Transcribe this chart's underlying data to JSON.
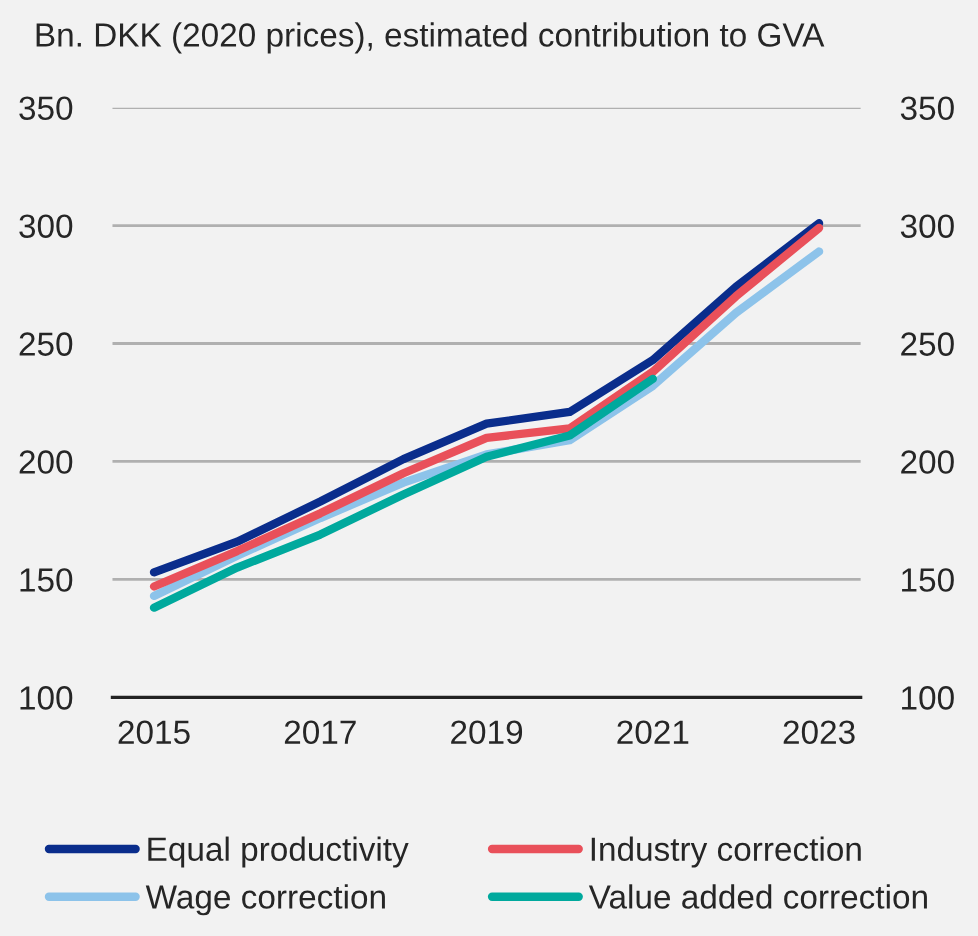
{
  "chart_data": {
    "type": "line",
    "title": "Bn. DKK (2020 prices), estimated contribution to GVA",
    "categories": [
      "2015",
      null,
      "2017",
      null,
      "2019",
      null,
      "2021",
      null,
      "2023"
    ],
    "series": [
      {
        "name": "Equal productivity",
        "color": "#0a2d8c",
        "values": [
          153,
          166,
          183,
          201,
          216,
          221,
          243,
          274,
          301
        ]
      },
      {
        "name": "Wage correction",
        "color": "#8dc3ea",
        "values": [
          143,
          160,
          176,
          191,
          203,
          209,
          232,
          263,
          289
        ]
      },
      {
        "name": "Industry correction",
        "color": "#e9505a",
        "values": [
          147,
          162,
          178,
          195,
          210,
          214,
          238,
          270,
          299
        ]
      },
      {
        "name": "Value added correction",
        "color": "#00a99d",
        "values": [
          138,
          155,
          169,
          186,
          202,
          211,
          235,
          null,
          null
        ]
      }
    ],
    "ylim": [
      100,
      350
    ],
    "yticks": [
      100,
      150,
      200,
      250,
      300,
      350
    ],
    "y2lim": [
      100,
      350
    ],
    "y2ticks": [
      100,
      150,
      200,
      250,
      300,
      350
    ],
    "grid": "y",
    "legend": "bottom",
    "marker": "none",
    "line_style": "solid"
  }
}
